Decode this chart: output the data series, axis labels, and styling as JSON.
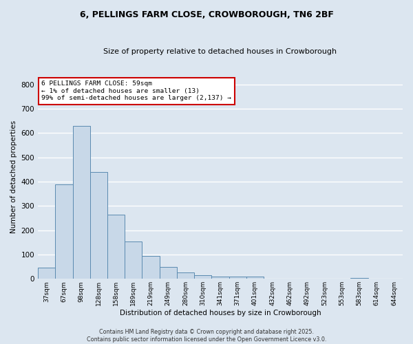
{
  "title1": "6, PELLINGS FARM CLOSE, CROWBOROUGH, TN6 2BF",
  "title2": "Size of property relative to detached houses in Crowborough",
  "xlabel": "Distribution of detached houses by size in Crowborough",
  "ylabel": "Number of detached properties",
  "categories": [
    "37sqm",
    "67sqm",
    "98sqm",
    "128sqm",
    "158sqm",
    "189sqm",
    "219sqm",
    "249sqm",
    "280sqm",
    "310sqm",
    "341sqm",
    "371sqm",
    "401sqm",
    "432sqm",
    "462sqm",
    "492sqm",
    "523sqm",
    "553sqm",
    "583sqm",
    "614sqm",
    "644sqm"
  ],
  "values": [
    45,
    390,
    630,
    440,
    265,
    155,
    95,
    50,
    25,
    15,
    10,
    10,
    10,
    0,
    0,
    0,
    0,
    0,
    5,
    0,
    0
  ],
  "bar_color": "#c8d8e8",
  "bar_edge_color": "#5a8ab0",
  "annotation_text": "6 PELLINGS FARM CLOSE: 59sqm\n← 1% of detached houses are smaller (13)\n99% of semi-detached houses are larger (2,137) →",
  "annotation_box_color": "#ffffff",
  "annotation_box_edge": "#cc0000",
  "background_color": "#dce6f0",
  "footer_text": "Contains HM Land Registry data © Crown copyright and database right 2025.\nContains public sector information licensed under the Open Government Licence v3.0.",
  "ylim": [
    0,
    840
  ],
  "yticks": [
    0,
    100,
    200,
    300,
    400,
    500,
    600,
    700,
    800
  ]
}
